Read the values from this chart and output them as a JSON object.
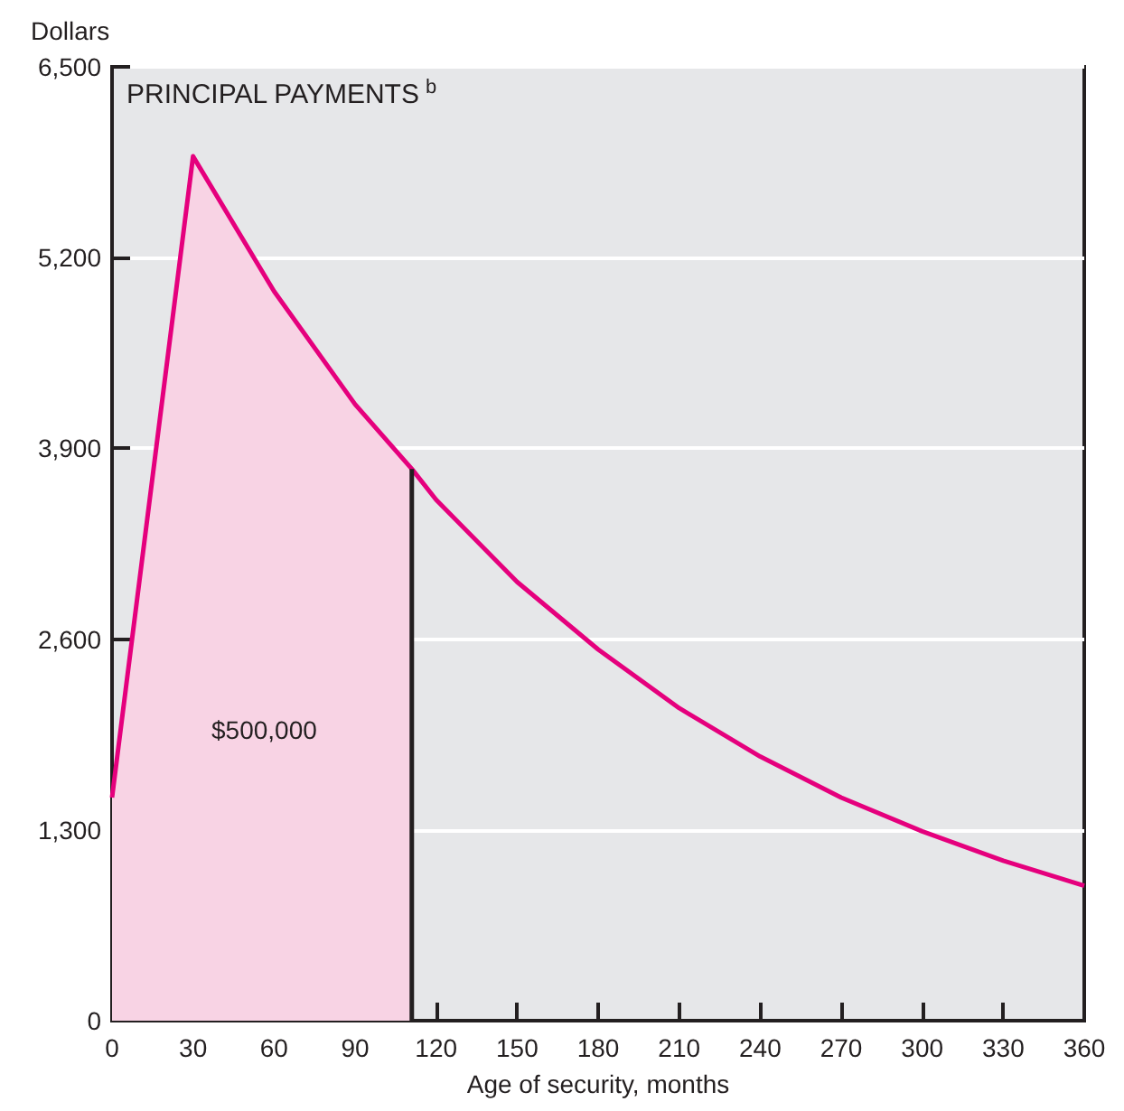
{
  "chart_data": {
    "type": "line",
    "title": "PRINCIPAL PAYMENTS$^{b}$",
    "xlabel": "Age of security, months",
    "ylabel": "Dollars",
    "annotations": [
      "$500,000"
    ],
    "series": [
      {
        "type": "area",
        "color": "#f8d3e4",
        "x": [
          0,
          30,
          60,
          90,
          111
        ],
        "values": [
          1520,
          5890,
          4970,
          4200,
          3760
        ]
      },
      {
        "type": "line",
        "color": "#e5007d",
        "x": [
          0,
          30,
          60,
          90,
          111,
          120,
          150,
          180,
          210,
          240,
          270,
          300,
          330,
          360
        ],
        "values": [
          1520,
          5890,
          4970,
          4200,
          3760,
          3550,
          2990,
          2530,
          2130,
          1800,
          1520,
          1290,
          1090,
          920
        ]
      },
      {
        "type": "line",
        "color": "#231f20",
        "x": [
          111,
          111
        ],
        "values": [
          0,
          3760
        ]
      }
    ],
    "xlim": [
      0,
      360
    ],
    "xticks": [
      0,
      30,
      60,
      90,
      120,
      150,
      180,
      210,
      240,
      270,
      300,
      330,
      360
    ],
    "ylim": [
      0,
      6500
    ],
    "yticks": [
      0,
      {
        "value": 1300,
        "label": "1,300"
      },
      {
        "value": 2600,
        "label": "2,600"
      },
      {
        "value": 3900,
        "label": "3,900"
      },
      {
        "value": 5200,
        "label": "5,200"
      },
      {
        "value": 6500,
        "label": "6,500"
      }
    ],
    "grid": "y",
    "marker": "none"
  }
}
